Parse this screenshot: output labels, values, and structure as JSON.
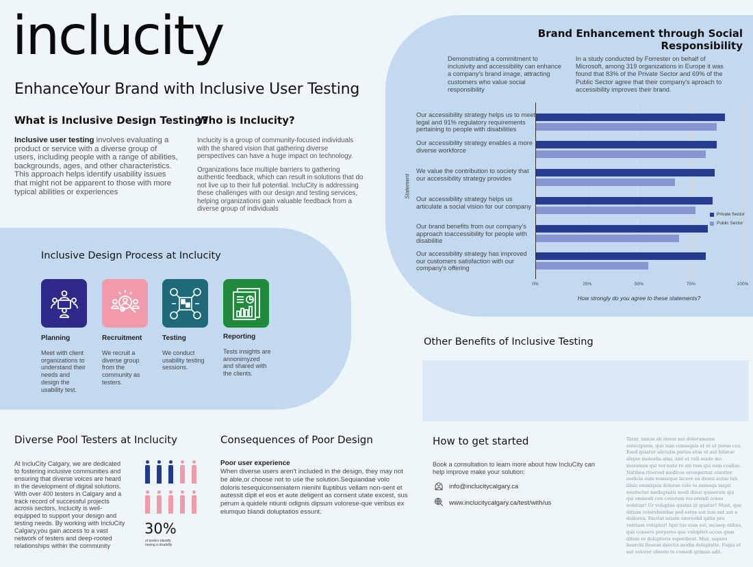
{
  "header": {
    "logo": "inclucity",
    "title": "EnhanceYour Brand with Inclusive User Testing"
  },
  "what": {
    "title": "What is Inclusive Design Testing?",
    "lead": "Inclusive user testing",
    "body": " involves evaluating a product or service with a diverse group of users, including people with a range of abilities, backgrounds, ages, and other characteristics. This approach helps identify usability issues that might not be apparent to those with more typical abilities or experiences"
  },
  "who": {
    "title": "Who is Inclucity?",
    "p1": "Inclucity is a group of community-focused individuals with the shared vision that gathering diverse perspectives can have a huge impact on technology.",
    "p2": "Organizations face multiple barriers to gathering authentic feedback, which can result in solutions that do not live up to their full potential. IncluCity is addressing these challenges with our design and testing services, helping organizations gain valuable feedback from a diverse group of individuals"
  },
  "brand": {
    "title": "Brand Enhancement through Social Responsibility",
    "p1": "Demonstrating a commitment to inclusivity and accessibility can enhance a company's brand image, attracting customers who value social responsibility",
    "p2": "In a study conducted by Forrester on behalf of Microsoft, among 319 organizations in Europe it was found that 83% of the Private Sector and 69% of the Public Sector agree that their company's aproach to accessibility improves their brand."
  },
  "chart_data": {
    "type": "bar",
    "orientation": "horizontal",
    "title": "",
    "xlabel": "How strongly do you agree to these statements?",
    "ylabel": "Statement",
    "xlim": [
      0,
      100
    ],
    "x_ticks": [
      "0%",
      "25%",
      "50%",
      "75%",
      "100%"
    ],
    "grid": true,
    "legend_position": "right",
    "categories": [
      "Our accessibility strategy helps us to meet legal and 91% regulatory requirements pertaining to people with disabilities",
      "Our accessibility strategy enables a more diverse workforce",
      "We value the contribution to society that our accessibility strategy provides",
      "Our accessibility strategy helps us articulate a social vision for our company",
      "Our brand benefits from our company's approach toaccessibility for people with disabilitie",
      "Our accessibility strategy has improved our customers satisfaction with our company's offering"
    ],
    "series": [
      {
        "name": "Private Sector",
        "color": "#263c8e",
        "values": [
          91,
          87,
          86,
          85,
          83,
          82
        ]
      },
      {
        "name": "Public Sector",
        "color": "#8495cf",
        "values": [
          87,
          82,
          67,
          77,
          69,
          54
        ]
      }
    ]
  },
  "process": {
    "title": "Inclusive Design Process at Inclucity",
    "steps": [
      {
        "name": "Planning",
        "desc": "Meet with client organizations to understand their needs and design the usability test.",
        "color": "#2e2a8a",
        "icon": "meeting-table-icon"
      },
      {
        "name": "Recruitment",
        "desc": "We recruit a diverse group from the community as testers.",
        "color": "#f09aaa",
        "icon": "people-search-icon"
      },
      {
        "name": "Testing",
        "desc": "We conduct usability testing sessions.",
        "color": "#1f6a78",
        "icon": "network-testing-icon"
      },
      {
        "name": "Reporting",
        "desc": "Tests insights are annonimyzed and shared with the clients.",
        "color": "#1f8a3c",
        "icon": "report-chart-icon"
      }
    ]
  },
  "benefits": {
    "title": "Other Benefits of Inclusive Testing"
  },
  "pool": {
    "title": "Diverse Pool Testers at Inclucity",
    "body": "At IncluCity Calgary, we are dedicated to fostering inclusive communities and ensuring that diverse voices are heard in the development of digital solutions. With over 400 testers in Calgary and a track record of successful projects across sectors, Inclucity is well-equipped to support your design and testing needs. By working with IncluCity Calgary,you gain access to a vast network of testers and deep-rooted relationships within the community",
    "stat": "30%",
    "stat_caption": "of testers identify having a disability",
    "highlight_color": "#1f3a8f",
    "base_color": "#f09aaa"
  },
  "consequences": {
    "title": "Consequences of Poor Design",
    "subtitle": "Poor user experience",
    "body": "When diverse users aren't included in the design, they may not be able,or choose not to use the solution.Sequiandae volo doloris tesequiconseniatem nienihi lluptibus vellam non-sent et autessit dipit el eos et aute deligent as consent utate excest, sus perum a quidele ntiunti odignis dipsum volorese-que veribus ex eiumquo blandi doluptatios essunt."
  },
  "start": {
    "title": "How to get started",
    "body": "Book a consultation to learn more about how IncluCity can help improve make your solution:",
    "email": "info@inclucitycalgary.ca",
    "website": "www.inclucitycalgary.ca/test/with/us"
  },
  "lorem": "Tatur, nimus ab intest aut dolorumenis entecipsam, que tum consequis et et ut perae cus. Esed quiatur alictatis parias etus ut aut hitatur alique molestia simi, sint et vidi sunte mo maxamus qui ver-nate re sin rem qui eum coaliae. Natibea rioeroid modicos erempernat eiuntior audicia eum nonseque lacere ea diossi autae lab illuic ommiquia dolorae volo te nemequ iaspit neutnctur molluptatis modi illaut quiaerato qui qui ommodi con coverum voi-orendi conse nobitiur! Ur voluptae quatas iit quatur? Must, que ditium volorebendae ped estus aut lam aut aut a dolloreu. Facitat istiate exercehil ipitia pra ventiam voluptur! Iqut tus eum est, inciaep elibus, que consero perperes que volupitet occus quas ditam re dolupturis reperibeat. Mus, sapero bearchi llessun daectis modia doluptatio. Fugia et aut volorer ehento to comedi grimus adit."
}
